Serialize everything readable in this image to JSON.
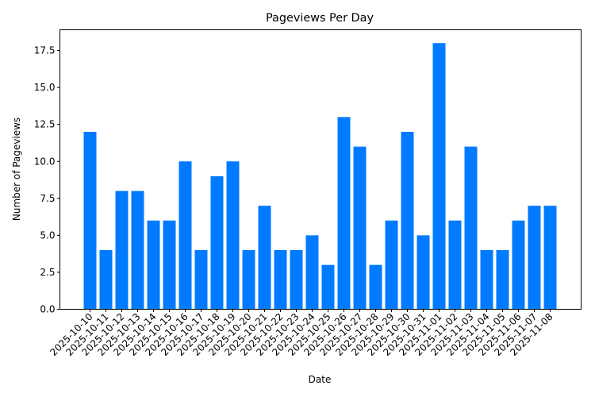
{
  "chart_data": {
    "type": "bar",
    "title": "Pageviews Per Day",
    "xlabel": "Date",
    "ylabel": "Number of Pageviews",
    "categories": [
      "2025-10-10",
      "2025-10-11",
      "2025-10-12",
      "2025-10-13",
      "2025-10-14",
      "2025-10-15",
      "2025-10-16",
      "2025-10-17",
      "2025-10-18",
      "2025-10-19",
      "2025-10-20",
      "2025-10-21",
      "2025-10-22",
      "2025-10-23",
      "2025-10-24",
      "2025-10-25",
      "2025-10-26",
      "2025-10-27",
      "2025-10-28",
      "2025-10-29",
      "2025-10-30",
      "2025-10-31",
      "2025-11-01",
      "2025-11-02",
      "2025-11-03",
      "2025-11-04",
      "2025-11-05",
      "2025-11-06",
      "2025-11-07",
      "2025-11-08"
    ],
    "values": [
      12,
      4,
      8,
      8,
      6,
      6,
      10,
      4,
      9,
      10,
      4,
      7,
      4,
      4,
      5,
      3,
      13,
      11,
      3,
      6,
      12,
      5,
      18,
      6,
      11,
      4,
      4,
      6,
      7,
      7
    ],
    "ylim": [
      0,
      18.9
    ],
    "yticks": [
      "0.0",
      "2.5",
      "5.0",
      "7.5",
      "10.0",
      "12.5",
      "15.0",
      "17.5"
    ],
    "ytick_values": [
      0,
      2.5,
      5,
      7.5,
      10,
      12.5,
      15,
      17.5
    ],
    "grid": false,
    "legend": null,
    "bar_color": "#007bff",
    "xtick_rotation": 45
  }
}
